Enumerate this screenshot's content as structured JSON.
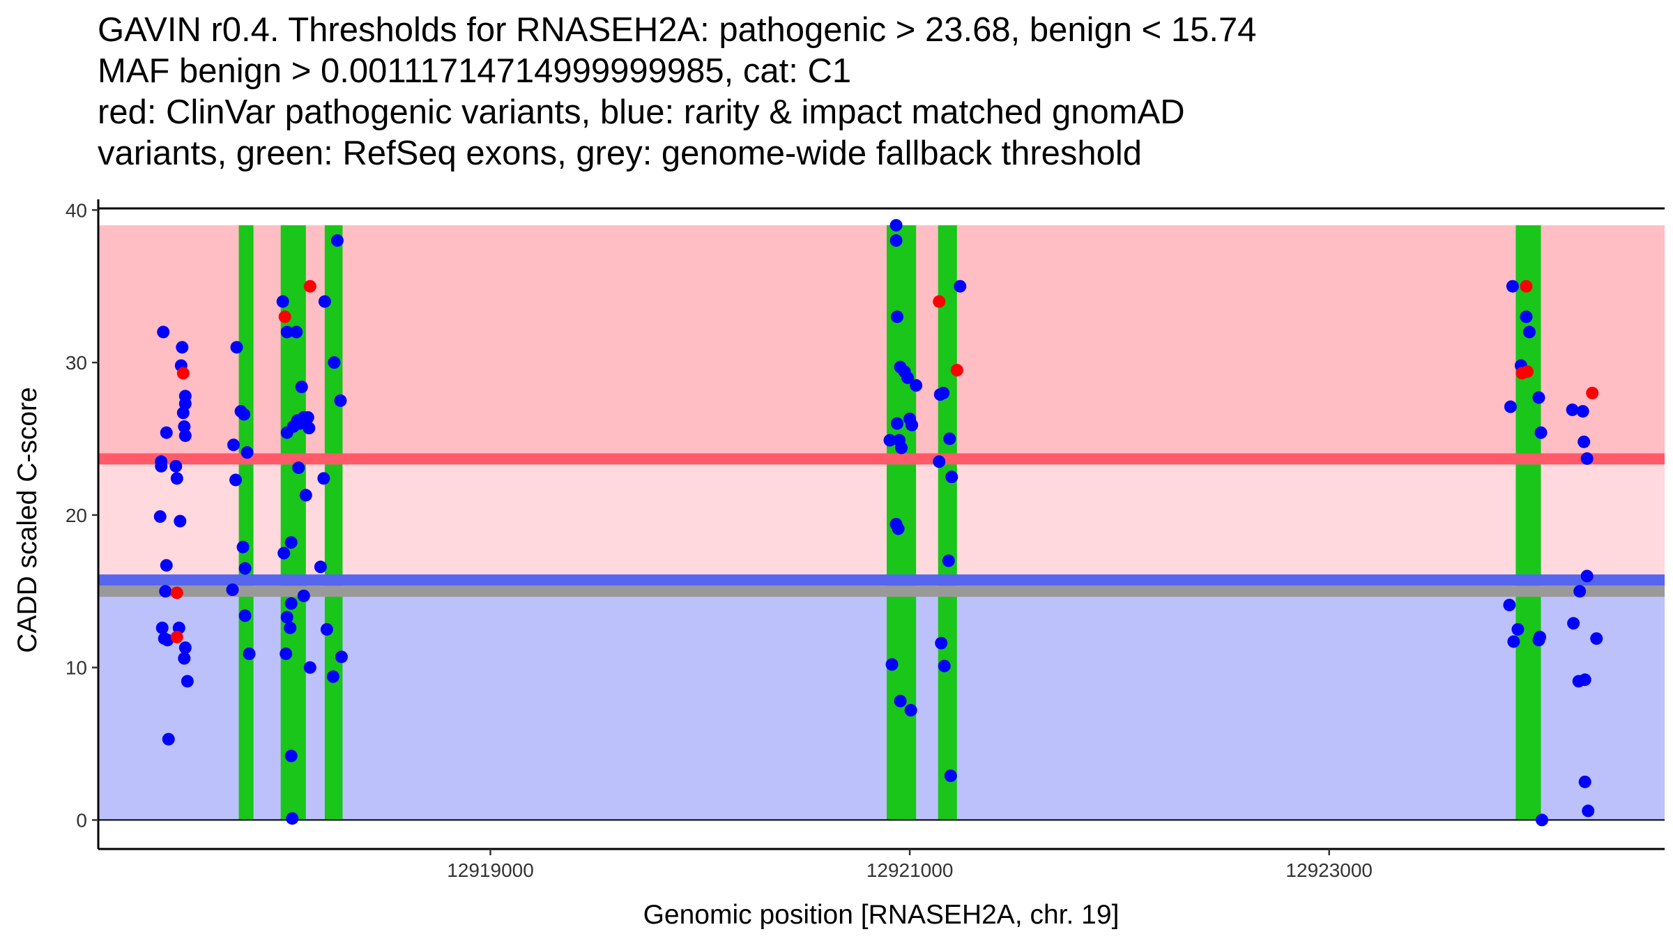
{
  "chart_data": {
    "type": "scatter",
    "title_lines": [
      "GAVIN r0.4. Thresholds for RNASEH2A: pathogenic > 23.68, benign < 15.74",
      "MAF benign > 0.00111714714999999985, cat: C1",
      "red: ClinVar pathogenic variants, blue: rarity & impact matched gnomAD",
      "variants, green: RefSeq exons, grey: genome-wide fallback threshold"
    ],
    "xlabel": "Genomic position [RNASEH2A, chr. 19]",
    "ylabel": "CADD scaled C-score",
    "xlim": [
      12917130,
      12924600
    ],
    "ylim": [
      -1.9,
      40.7
    ],
    "x_ticks": [
      {
        "value": 12919000,
        "label": "12919000"
      },
      {
        "value": 12921000,
        "label": "12921000"
      },
      {
        "value": 12923000,
        "label": "12923000"
      }
    ],
    "y_ticks": [
      {
        "value": 0,
        "label": "0"
      },
      {
        "value": 10,
        "label": "10"
      },
      {
        "value": 20,
        "label": "20"
      },
      {
        "value": 30,
        "label": "30"
      },
      {
        "value": 40,
        "label": "40"
      }
    ],
    "grid": false,
    "thresholds": {
      "pathogenic": 23.68,
      "benign": 15.74,
      "genome_wide_fallback": 15.0,
      "max_score": 39.0
    },
    "colors": {
      "pathogenic_zone": "#ffbdc4",
      "intermediate_zone": "#ffd9dd",
      "benign_zone": "#bcc1fb",
      "pathogenic_line": "#ff5a6a",
      "benign_line": "#5666ee",
      "fallback_line": "#999999",
      "exon": "#19c619",
      "clinvar_point": "#ff0000",
      "gnomad_point": "#0000ff"
    },
    "exons": [
      {
        "start": 12917800,
        "end": 12917870
      },
      {
        "start": 12918000,
        "end": 12918120
      },
      {
        "start": 12918210,
        "end": 12918295
      },
      {
        "start": 12920890,
        "end": 12921030
      },
      {
        "start": 12921135,
        "end": 12921225
      },
      {
        "start": 12923890,
        "end": 12924010
      }
    ],
    "series": [
      {
        "name": "ClinVar pathogenic variants",
        "points": [
          [
            12917505,
            14.9
          ],
          [
            12917505,
            12.0
          ],
          [
            12917535,
            29.3
          ],
          [
            12918020,
            33.0
          ],
          [
            12918140,
            35.0
          ],
          [
            12921140,
            34.0
          ],
          [
            12921225,
            29.5
          ],
          [
            12923940,
            35.0
          ],
          [
            12923920,
            29.3
          ],
          [
            12923945,
            29.4
          ],
          [
            12924255,
            28.0
          ]
        ]
      },
      {
        "name": "rarity & impact matched gnomAD variants",
        "points": [
          [
            12917440,
            32.0
          ],
          [
            12917455,
            25.4
          ],
          [
            12917430,
            23.5
          ],
          [
            12917430,
            23.2
          ],
          [
            12917425,
            19.9
          ],
          [
            12917455,
            16.7
          ],
          [
            12917450,
            15.0
          ],
          [
            12917435,
            12.6
          ],
          [
            12917445,
            11.9
          ],
          [
            12917460,
            11.8
          ],
          [
            12917465,
            5.3
          ],
          [
            12917500,
            23.2
          ],
          [
            12917505,
            22.4
          ],
          [
            12917520,
            19.6
          ],
          [
            12917515,
            12.6
          ],
          [
            12917530,
            31.0
          ],
          [
            12917525,
            29.8
          ],
          [
            12917545,
            27.8
          ],
          [
            12917545,
            27.3
          ],
          [
            12917535,
            26.7
          ],
          [
            12917540,
            25.8
          ],
          [
            12917545,
            25.2
          ],
          [
            12917545,
            11.3
          ],
          [
            12917540,
            10.6
          ],
          [
            12917555,
            9.1
          ],
          [
            12917775,
            24.6
          ],
          [
            12917790,
            31.0
          ],
          [
            12917810,
            26.8
          ],
          [
            12917825,
            26.6
          ],
          [
            12917785,
            22.3
          ],
          [
            12917840,
            24.1
          ],
          [
            12917820,
            17.9
          ],
          [
            12917830,
            16.5
          ],
          [
            12917770,
            15.1
          ],
          [
            12917830,
            13.4
          ],
          [
            12917850,
            10.9
          ],
          [
            12918010,
            34.0
          ],
          [
            12918030,
            32.0
          ],
          [
            12918075,
            32.0
          ],
          [
            12918030,
            25.4
          ],
          [
            12918060,
            25.8
          ],
          [
            12918090,
            26.0
          ],
          [
            12918080,
            26.2
          ],
          [
            12918110,
            26.4
          ],
          [
            12918130,
            26.4
          ],
          [
            12918135,
            25.7
          ],
          [
            12918100,
            28.4
          ],
          [
            12918085,
            23.1
          ],
          [
            12918120,
            21.3
          ],
          [
            12918015,
            17.5
          ],
          [
            12918050,
            18.2
          ],
          [
            12918050,
            14.2
          ],
          [
            12918030,
            13.3
          ],
          [
            12918045,
            12.6
          ],
          [
            12918110,
            14.7
          ],
          [
            12918025,
            10.9
          ],
          [
            12918140,
            10.0
          ],
          [
            12918050,
            4.2
          ],
          [
            12918055,
            0.1
          ],
          [
            12918210,
            34.0
          ],
          [
            12918270,
            38.0
          ],
          [
            12918255,
            30.0
          ],
          [
            12918285,
            27.5
          ],
          [
            12918205,
            22.4
          ],
          [
            12918190,
            16.6
          ],
          [
            12918220,
            12.5
          ],
          [
            12918290,
            10.7
          ],
          [
            12918250,
            9.4
          ],
          [
            12920935,
            39.0
          ],
          [
            12920935,
            38.0
          ],
          [
            12920940,
            33.0
          ],
          [
            12920955,
            29.7
          ],
          [
            12920975,
            29.4
          ],
          [
            12920990,
            29.0
          ],
          [
            12921030,
            28.5
          ],
          [
            12921000,
            26.3
          ],
          [
            12921010,
            25.9
          ],
          [
            12920940,
            26.0
          ],
          [
            12920905,
            24.9
          ],
          [
            12920950,
            24.9
          ],
          [
            12920960,
            24.4
          ],
          [
            12920935,
            19.4
          ],
          [
            12920945,
            19.1
          ],
          [
            12920915,
            10.2
          ],
          [
            12920955,
            7.8
          ],
          [
            12921005,
            7.2
          ],
          [
            12921160,
            28.0
          ],
          [
            12921145,
            27.9
          ],
          [
            12921240,
            35.0
          ],
          [
            12921190,
            25.0
          ],
          [
            12921140,
            23.5
          ],
          [
            12921200,
            22.5
          ],
          [
            12921185,
            17.0
          ],
          [
            12921150,
            11.6
          ],
          [
            12921165,
            10.1
          ],
          [
            12921195,
            2.9
          ],
          [
            12923875,
            35.0
          ],
          [
            12923940,
            33.0
          ],
          [
            12923955,
            32.0
          ],
          [
            12923915,
            29.8
          ],
          [
            12923865,
            27.1
          ],
          [
            12924000,
            27.7
          ],
          [
            12924010,
            25.4
          ],
          [
            12923860,
            14.1
          ],
          [
            12923900,
            12.5
          ],
          [
            12924005,
            12.0
          ],
          [
            12923880,
            11.7
          ],
          [
            12924000,
            11.8
          ],
          [
            12924015,
            0.0
          ],
          [
            12924160,
            26.9
          ],
          [
            12924210,
            26.8
          ],
          [
            12924215,
            24.8
          ],
          [
            12924230,
            23.7
          ],
          [
            12924195,
            15.0
          ],
          [
            12924230,
            16.0
          ],
          [
            12924165,
            12.9
          ],
          [
            12924275,
            11.9
          ],
          [
            12924190,
            9.1
          ],
          [
            12924220,
            9.2
          ],
          [
            12924220,
            2.5
          ],
          [
            12924235,
            0.6
          ]
        ]
      }
    ]
  }
}
